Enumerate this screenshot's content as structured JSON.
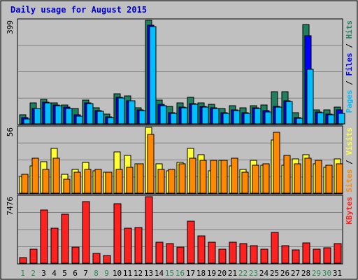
{
  "chart_data": {
    "type": "bar",
    "title": "Daily usage for August 2015",
    "days": [
      "1",
      "2",
      "3",
      "4",
      "5",
      "6",
      "7",
      "8",
      "9",
      "10",
      "11",
      "12",
      "13",
      "14",
      "15",
      "16",
      "17",
      "18",
      "19",
      "20",
      "21",
      "22",
      "23",
      "24",
      "25",
      "26",
      "27",
      "28",
      "29",
      "30",
      "31"
    ],
    "weekend_days": [
      "1",
      "2",
      "8",
      "9",
      "15",
      "16",
      "22",
      "23",
      "29",
      "30"
    ],
    "panels": [
      {
        "id": "hits-files-pages",
        "ymax": 399,
        "ymax_label": "399",
        "right_labels": [
          "Pages",
          "Files",
          "Hits"
        ],
        "series": [
          {
            "name": "Hits",
            "color": "#1f7f5f",
            "values": [
              35,
              80,
              95,
              82,
              72,
              60,
              92,
              63,
              38,
              115,
              107,
              62,
              399,
              92,
              68,
              80,
              103,
              82,
              75,
              58,
              70,
              62,
              70,
              72,
              125,
              125,
              42,
              382,
              55,
              55,
              65
            ]
          },
          {
            "name": "Files",
            "color": "#0000ff",
            "values": [
              23,
              60,
              83,
              72,
              65,
              35,
              80,
              52,
              27,
              102,
              90,
              55,
              380,
              75,
              42,
              65,
              78,
              68,
              62,
              42,
              55,
              43,
              62,
              50,
              68,
              90,
              25,
              340,
              45,
              38,
              55
            ]
          },
          {
            "name": "Pages",
            "color": "#00bfff",
            "values": [
              20,
              58,
              80,
              70,
              60,
              30,
              78,
              48,
              25,
              100,
              88,
              50,
              375,
              70,
              40,
              62,
              75,
              65,
              60,
              40,
              50,
              40,
              58,
              45,
              65,
              85,
              22,
              210,
              42,
              35,
              40
            ]
          }
        ]
      },
      {
        "id": "visits-sites",
        "ymax": 56,
        "ymax_label": "56",
        "right_labels": [
          "Sites",
          "Visits"
        ],
        "series": [
          {
            "name": "Visits",
            "color": "#ffff33",
            "values": [
              14,
              23,
              27,
              38,
              16,
              20,
              26,
              19,
              18,
              35,
              32,
              25,
              56,
              25,
              19,
              26,
              38,
              33,
              19,
              28,
              23,
              20,
              28,
              24,
              45,
              24,
              29,
              33,
              25,
              22,
              29
            ]
          },
          {
            "name": "Sites",
            "color": "#ff8800",
            "values": [
              16,
              30,
              20,
              30,
              12,
              18,
              20,
              20,
              18,
              20,
              22,
              25,
              50,
              20,
              20,
              25,
              30,
              28,
              28,
              28,
              30,
              18,
              24,
              25,
              52,
              32,
              25,
              30,
              28,
              24,
              25
            ]
          }
        ]
      },
      {
        "id": "kbytes",
        "ymax": 7476,
        "ymax_label": "7476",
        "right_labels": [
          "KBytes"
        ],
        "series": [
          {
            "name": "KBytes",
            "color": "#ff2020",
            "values": [
              600,
              1600,
              6000,
              3900,
              5500,
              1800,
              6900,
              1100,
              900,
              6700,
              3900,
              4000,
              7476,
              2400,
              2200,
              1800,
              4700,
              3100,
              2400,
              1600,
              2400,
              2200,
              2000,
              1600,
              3500,
              2000,
              1500,
              2300,
              1600,
              1700,
              2200
            ]
          }
        ]
      }
    ]
  }
}
